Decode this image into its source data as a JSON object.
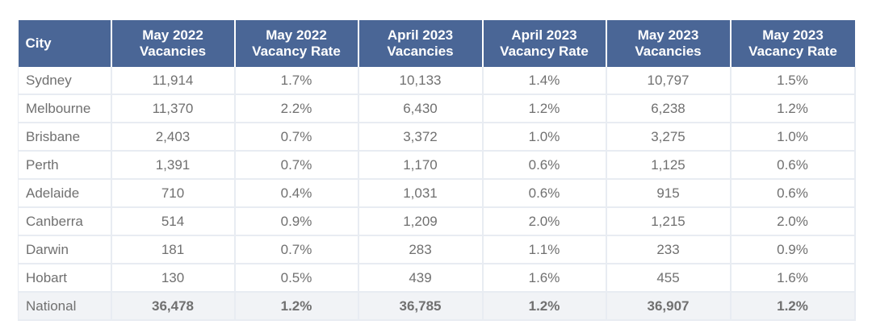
{
  "table": {
    "headers": [
      {
        "line1": "City",
        "line2": ""
      },
      {
        "line1": "May 2022",
        "line2": "Vacancies"
      },
      {
        "line1": "May 2022",
        "line2": "Vacancy Rate"
      },
      {
        "line1": "April 2023",
        "line2": "Vacancies"
      },
      {
        "line1": "April 2023",
        "line2": "Vacancy Rate"
      },
      {
        "line1": "May 2023",
        "line2": "Vacancies"
      },
      {
        "line1": "May 2023",
        "line2": "Vacancy Rate"
      }
    ],
    "rows": [
      [
        "Sydney",
        "11,914",
        "1.7%",
        "10,133",
        "1.4%",
        "10,797",
        "1.5%"
      ],
      [
        "Melbourne",
        "11,370",
        "2.2%",
        "6,430",
        "1.2%",
        "6,238",
        "1.2%"
      ],
      [
        "Brisbane",
        "2,403",
        "0.7%",
        "3,372",
        "1.0%",
        "3,275",
        "1.0%"
      ],
      [
        "Perth",
        "1,391",
        "0.7%",
        "1,170",
        "0.6%",
        "1,125",
        "0.6%"
      ],
      [
        "Adelaide",
        "710",
        "0.4%",
        "1,031",
        "0.6%",
        "915",
        "0.6%"
      ],
      [
        "Canberra",
        "514",
        "0.9%",
        "1,209",
        "2.0%",
        "1,215",
        "2.0%"
      ],
      [
        "Darwin",
        "181",
        "0.7%",
        "283",
        "1.1%",
        "233",
        "0.9%"
      ],
      [
        "Hobart",
        "130",
        "0.5%",
        "439",
        "1.6%",
        "455",
        "1.6%"
      ]
    ],
    "total": [
      "National",
      "36,478",
      "1.2%",
      "36,785",
      "1.2%",
      "36,907",
      "1.2%"
    ]
  },
  "colors": {
    "header_bg": "#4a6696",
    "header_text": "#ffffff",
    "cell_text": "#707070",
    "total_row_bg": "#f1f3f6"
  }
}
